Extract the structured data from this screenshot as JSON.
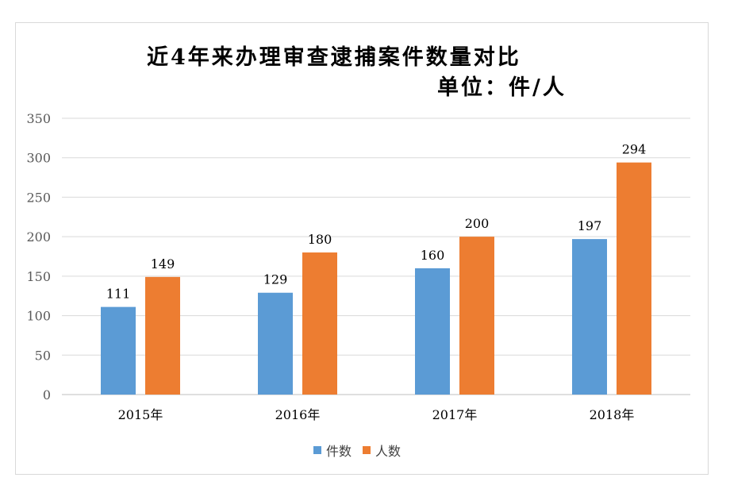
{
  "chart_data": {
    "type": "bar",
    "title": "近4年来办理审查逮捕案件数量对比",
    "subtitle": "单位：件/人",
    "categories": [
      "2015年",
      "2016年",
      "2017年",
      "2018年"
    ],
    "series": [
      {
        "name": "件数",
        "values": [
          111,
          129,
          160,
          197
        ],
        "color": "#5b9bd5"
      },
      {
        "name": "人数",
        "values": [
          149,
          180,
          200,
          294
        ],
        "color": "#ed7d31"
      }
    ],
    "ylim": [
      0,
      350
    ],
    "yticks": [
      0,
      50,
      100,
      150,
      200,
      250,
      300,
      350
    ],
    "grid": true,
    "legend_position": "bottom",
    "data_labels": true
  }
}
